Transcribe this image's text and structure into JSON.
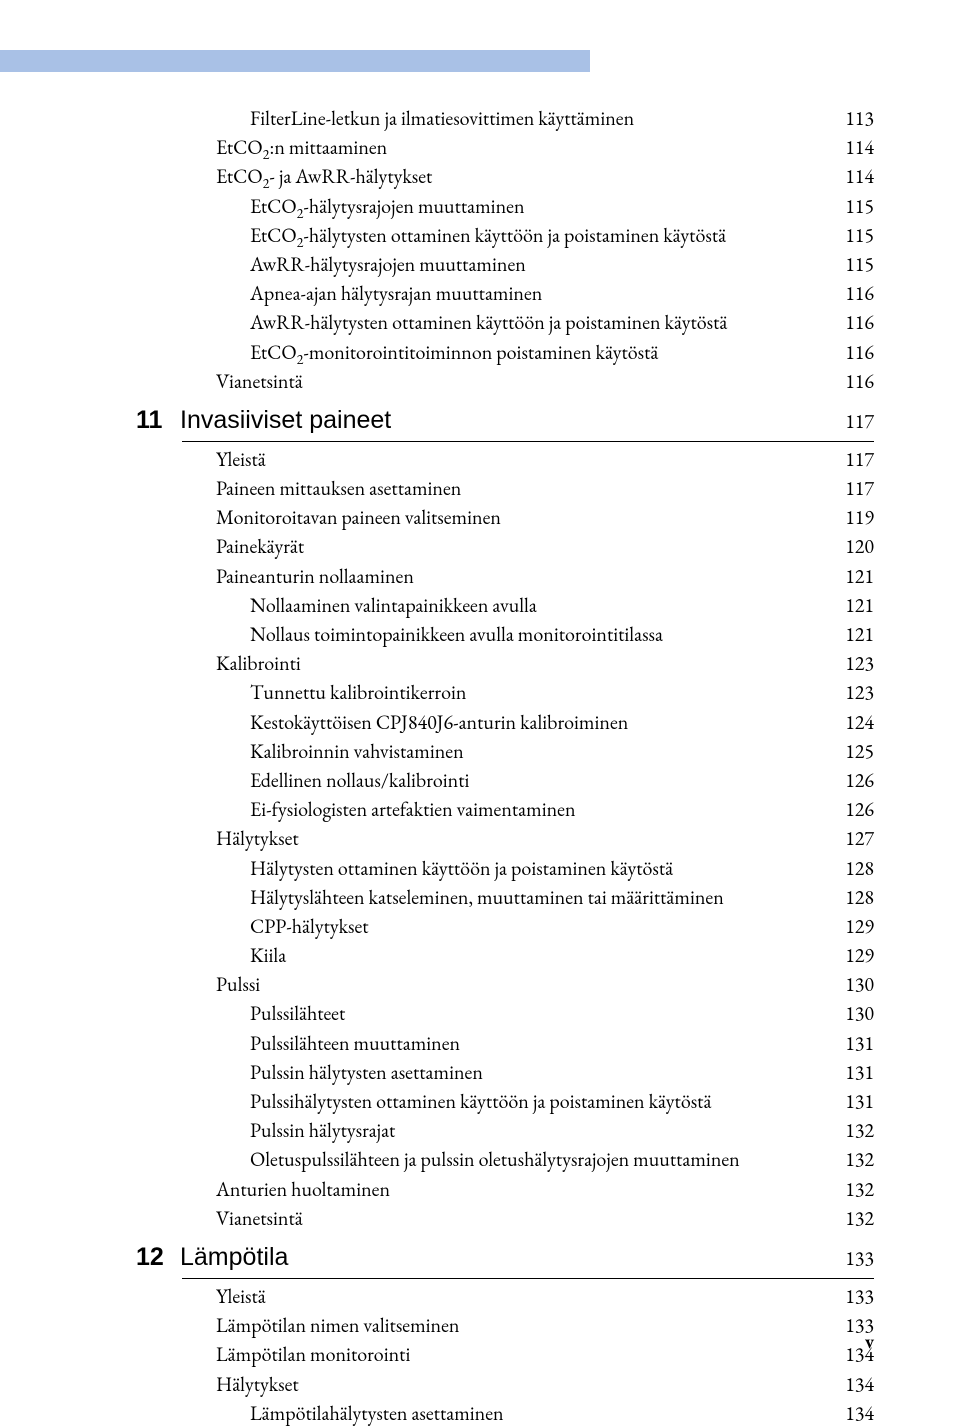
{
  "header_bar_color": "#a9c1e6",
  "pre_rows": [
    {
      "t": "FilterLine-letkun ja ilmatiesovittimen käyttäminen",
      "p": "113",
      "lvl": 3
    },
    {
      "t": "EtCO₂:n mittaaminen",
      "p": "114",
      "lvl": 2,
      "co2": true,
      "raw": "EtCO"
    },
    {
      "t": "EtCO₂- ja AwRR-hälytykset",
      "p": "114",
      "lvl": 2,
      "co2": true,
      "raw": "EtCO",
      "suffix": "- ja AwRR-hälytykset"
    },
    {
      "t": "EtCO₂-hälytysrajojen muuttaminen",
      "p": "115",
      "lvl": 3,
      "co2": true,
      "raw": "EtCO",
      "suffix": "-hälytysrajojen muuttaminen"
    },
    {
      "t": "EtCO₂-hälytysten ottaminen käyttöön ja poistaminen käytöstä",
      "p": "115",
      "lvl": 3,
      "co2": true,
      "raw": "EtCO",
      "suffix": "-hälytysten ottaminen käyttöön ja poistaminen käytöstä"
    },
    {
      "t": "AwRR-hälytysrajojen muuttaminen",
      "p": "115",
      "lvl": 3
    },
    {
      "t": "Apnea-ajan hälytysrajan muuttaminen",
      "p": "116",
      "lvl": 3
    },
    {
      "t": "AwRR-hälytysten ottaminen käyttöön ja poistaminen käytöstä",
      "p": "116",
      "lvl": 3
    },
    {
      "t": "EtCO₂-monitorointitoiminnon poistaminen käytöstä",
      "p": "116",
      "lvl": 3,
      "co2": true,
      "raw": "EtCO",
      "suffix": "-monitorointitoiminnon poistaminen käytöstä"
    },
    {
      "t": "Vianetsintä",
      "p": "116",
      "lvl": 2
    }
  ],
  "section11": {
    "num": "11",
    "title": "Invasiiviset paineet",
    "page": "117"
  },
  "rows11": [
    {
      "t": "Yleistä",
      "p": "117",
      "lvl": 2
    },
    {
      "t": "Paineen mittauksen asettaminen",
      "p": "117",
      "lvl": 2
    },
    {
      "t": "Monitoroitavan paineen valitseminen",
      "p": "119",
      "lvl": 2
    },
    {
      "t": "Painekäyrät",
      "p": "120",
      "lvl": 2
    },
    {
      "t": "Paineanturin nollaaminen",
      "p": "121",
      "lvl": 2
    },
    {
      "t": "Nollaaminen valintapainikkeen avulla",
      "p": "121",
      "lvl": 3
    },
    {
      "t": "Nollaus toimintopainikkeen avulla monitorointitilassa",
      "p": "121",
      "lvl": 3
    },
    {
      "t": "Kalibrointi",
      "p": "123",
      "lvl": 2
    },
    {
      "t": "Tunnettu kalibrointikerroin",
      "p": "123",
      "lvl": 3
    },
    {
      "t": "Kestokäyttöisen CPJ840J6-anturin kalibroiminen",
      "p": "124",
      "lvl": 3
    },
    {
      "t": "Kalibroinnin vahvistaminen",
      "p": "125",
      "lvl": 3
    },
    {
      "t": "Edellinen nollaus/kalibrointi",
      "p": "126",
      "lvl": 3
    },
    {
      "t": "Ei-fysiologisten artefaktien vaimentaminen",
      "p": "126",
      "lvl": 3
    },
    {
      "t": "Hälytykset",
      "p": "127",
      "lvl": 2
    },
    {
      "t": "Hälytysten ottaminen käyttöön ja poistaminen käytöstä",
      "p": "128",
      "lvl": 3
    },
    {
      "t": "Hälytyslähteen katseleminen, muuttaminen tai määrittäminen",
      "p": "128",
      "lvl": 3
    },
    {
      "t": "CPP-hälytykset",
      "p": "129",
      "lvl": 3
    },
    {
      "t": "Kiila",
      "p": "129",
      "lvl": 3
    },
    {
      "t": "Pulssi",
      "p": "130",
      "lvl": 2
    },
    {
      "t": "Pulssilähteet",
      "p": "130",
      "lvl": 3
    },
    {
      "t": "Pulssilähteen muuttaminen",
      "p": "131",
      "lvl": 3
    },
    {
      "t": "Pulssin hälytysten asettaminen",
      "p": "131",
      "lvl": 3
    },
    {
      "t": "Pulssihälytysten ottaminen käyttöön ja poistaminen käytöstä",
      "p": "131",
      "lvl": 3
    },
    {
      "t": "Pulssin hälytysrajat",
      "p": "132",
      "lvl": 3
    },
    {
      "t": "Oletuspulssilähteen ja pulssin oletushälytysrajojen muuttaminen",
      "p": "132",
      "lvl": 3
    },
    {
      "t": "Anturien huoltaminen",
      "p": "132",
      "lvl": 2
    },
    {
      "t": "Vianetsintä",
      "p": "132",
      "lvl": 2
    }
  ],
  "section12": {
    "num": "12",
    "title": "Lämpötila",
    "page": "133"
  },
  "rows12": [
    {
      "t": "Yleistä",
      "p": "133",
      "lvl": 2
    },
    {
      "t": "Lämpötilan nimen valitseminen",
      "p": "133",
      "lvl": 2
    },
    {
      "t": "Lämpötilan monitorointi",
      "p": "134",
      "lvl": 2
    },
    {
      "t": "Hälytykset",
      "p": "134",
      "lvl": 2
    },
    {
      "t": "Lämpötilahälytysten asettaminen",
      "p": "134",
      "lvl": 3
    }
  ],
  "page_number": "v"
}
